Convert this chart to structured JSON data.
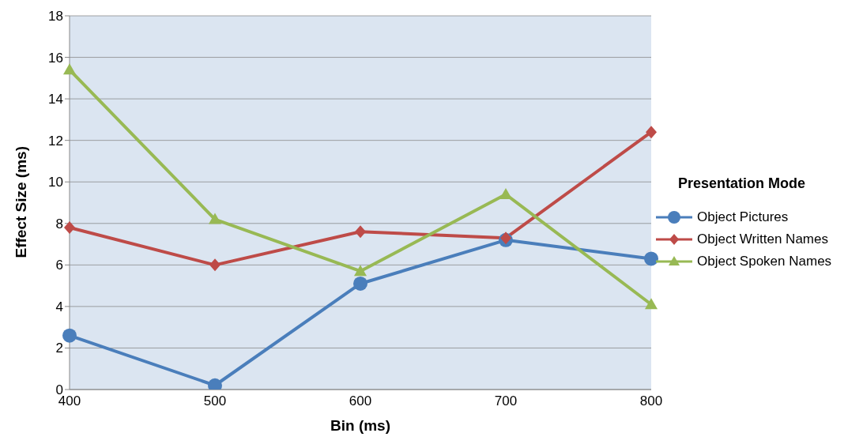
{
  "chart_data": {
    "type": "line",
    "xlabel": "Bin (ms)",
    "ylabel": "Effect Size (ms)",
    "legend_title": "Presentation Mode",
    "categories": [
      "400",
      "500",
      "600",
      "700",
      "800"
    ],
    "ylim": [
      0,
      18
    ],
    "yticks": [
      0,
      2,
      4,
      6,
      8,
      10,
      12,
      14,
      16,
      18
    ],
    "grid": "y",
    "legend": "right",
    "series": [
      {
        "name": "Object Pictures",
        "color": "#4a7ebb",
        "marker": "circle",
        "values": [
          2.6,
          0.2,
          5.1,
          7.2,
          6.3
        ]
      },
      {
        "name": "Object Written Names",
        "color": "#be4b48",
        "marker": "diamond",
        "values": [
          7.8,
          6.0,
          7.6,
          7.3,
          12.4
        ]
      },
      {
        "name": "Object Spoken Names",
        "color": "#98b954",
        "marker": "triangle",
        "values": [
          15.4,
          8.2,
          5.7,
          9.4,
          4.1
        ]
      }
    ]
  }
}
